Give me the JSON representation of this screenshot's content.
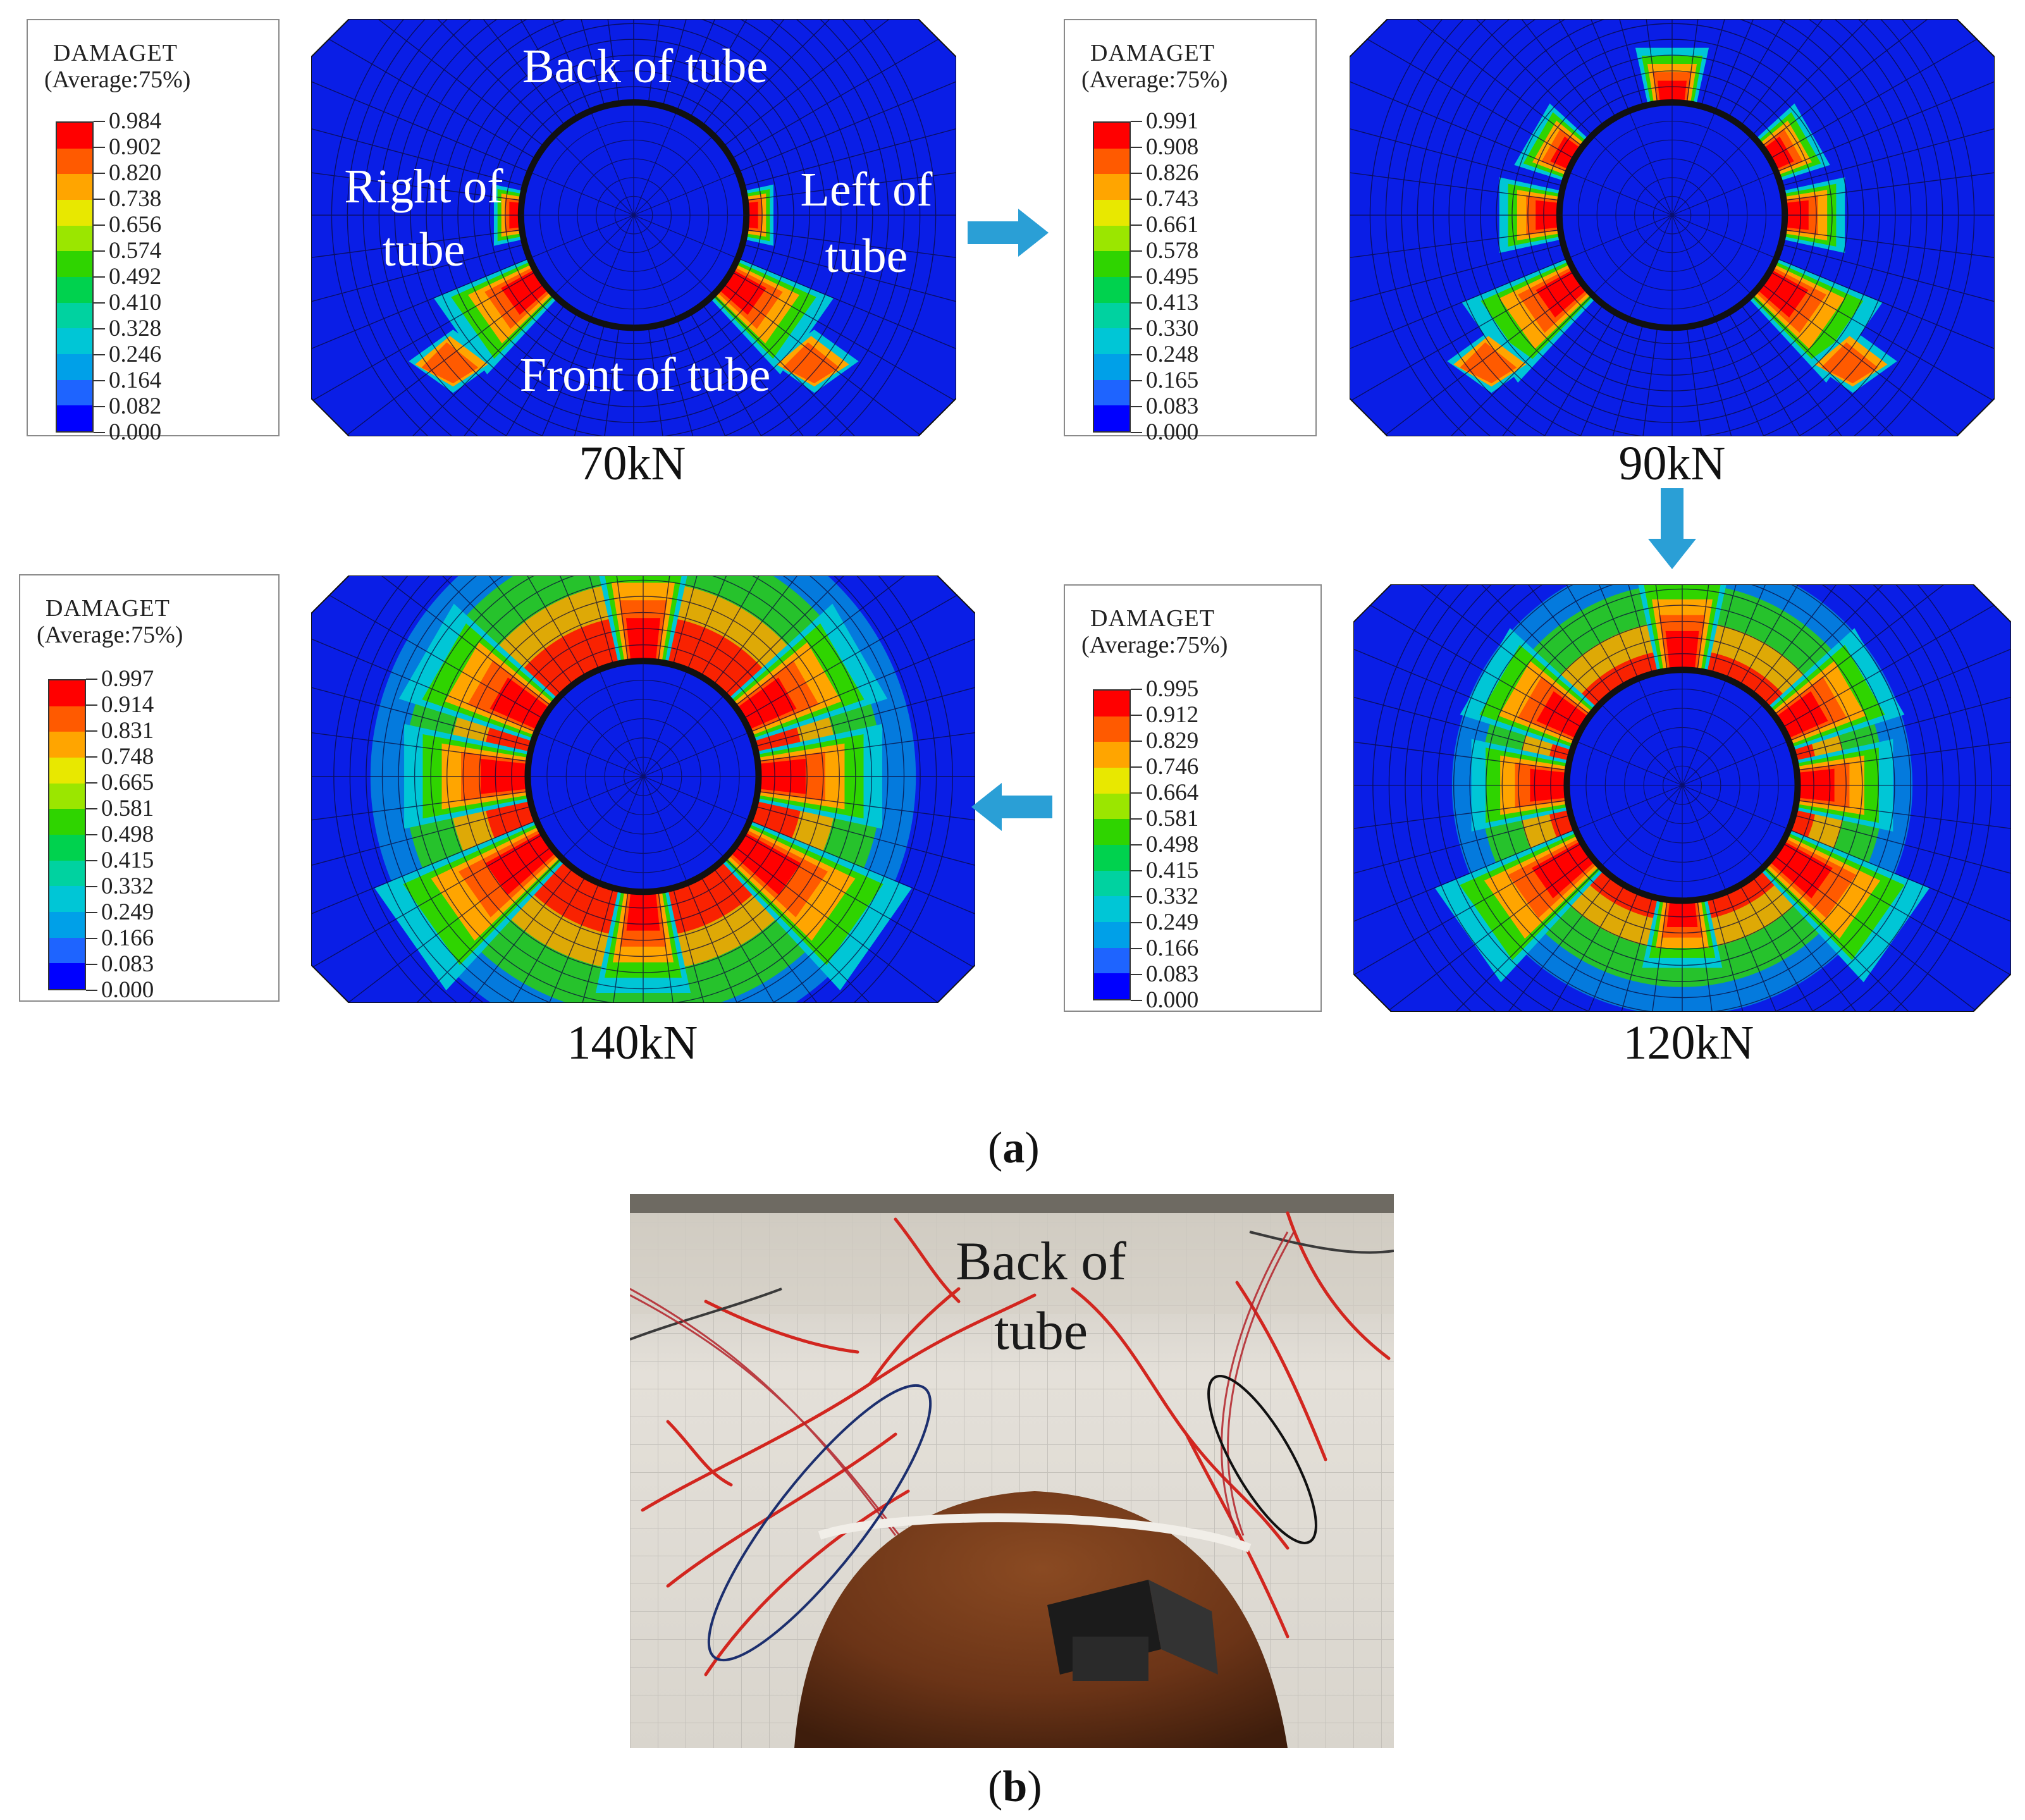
{
  "panel_a": {
    "caption_open": "(",
    "caption_letter": "a",
    "caption_close": ")",
    "stages": [
      {
        "load": "70kN",
        "legend": {
          "title": "DAMAGET",
          "subtitle": "(Average:75%)",
          "values": [
            "0.984",
            "0.902",
            "0.820",
            "0.738",
            "0.656",
            "0.574",
            "0.492",
            "0.410",
            "0.328",
            "0.246",
            "0.164",
            "0.082",
            "0.000"
          ]
        }
      },
      {
        "load": "90kN",
        "legend": {
          "title": "DAMAGET",
          "subtitle": "(Average:75%)",
          "values": [
            "0.991",
            "0.908",
            "0.826",
            "0.743",
            "0.661",
            "0.578",
            "0.495",
            "0.413",
            "0.330",
            "0.248",
            "0.165",
            "0.083",
            "0.000"
          ]
        }
      },
      {
        "load": "120kN",
        "legend": {
          "title": "DAMAGET",
          "subtitle": "(Average:75%)",
          "values": [
            "0.995",
            "0.912",
            "0.829",
            "0.746",
            "0.664",
            "0.581",
            "0.498",
            "0.415",
            "0.332",
            "0.249",
            "0.166",
            "0.083",
            "0.000"
          ]
        }
      },
      {
        "load": "140kN",
        "legend": {
          "title": "DAMAGET",
          "subtitle": "(Average:75%)",
          "values": [
            "0.997",
            "0.914",
            "0.831",
            "0.748",
            "0.665",
            "0.581",
            "0.498",
            "0.415",
            "0.332",
            "0.249",
            "0.166",
            "0.083",
            "0.000"
          ]
        }
      }
    ],
    "orientation_labels": {
      "back": "Back of tube",
      "front": "Front of tube",
      "right_line1": "Right of",
      "right_line2": "tube",
      "left_line1": "Left of",
      "left_line2": "tube"
    },
    "contour_colors": [
      "#ff0000",
      "#ff5a00",
      "#ffa500",
      "#e8e800",
      "#9be600",
      "#2fd400",
      "#00d24e",
      "#00d2a0",
      "#00c6d6",
      "#00a0e8",
      "#1e64ff",
      "#0000ff"
    ],
    "arrow_color": "#2a9fd6"
  },
  "panel_b": {
    "caption_open": "(",
    "caption_letter": "b",
    "caption_close": ")",
    "photo_label_line1": "Back of",
    "photo_label_line2": "tube",
    "ellipse_colors": [
      "#1c2f6e",
      "#111111"
    ]
  }
}
